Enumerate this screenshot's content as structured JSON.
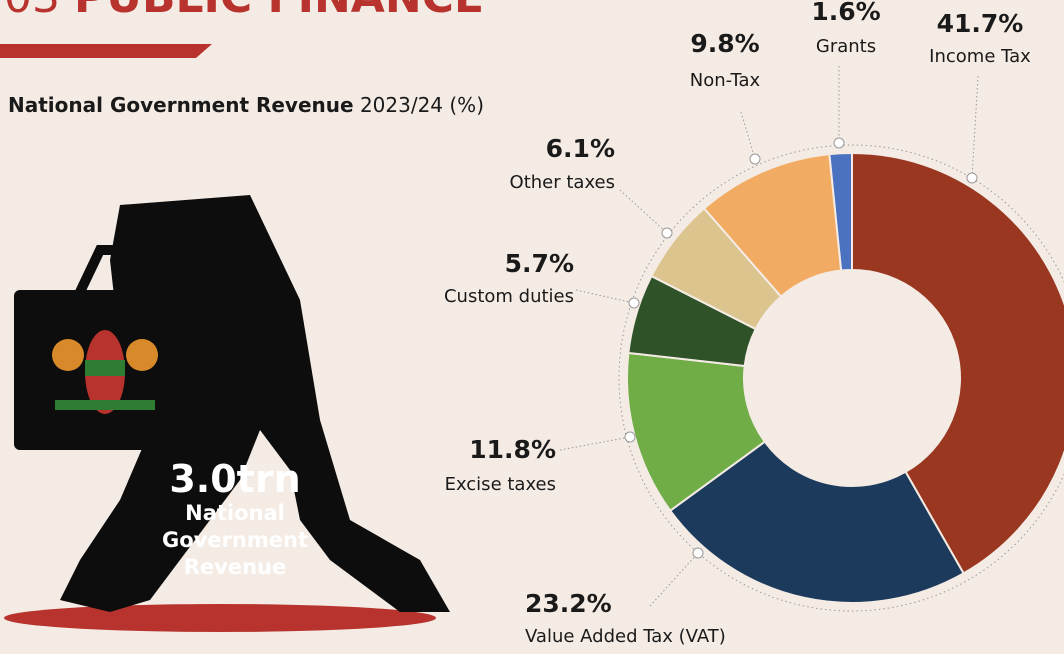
{
  "section": {
    "number": "03",
    "title": "PUBLIC FINANCE"
  },
  "chart_data": {
    "type": "donut",
    "title": "National Government Revenue",
    "subtitle": "2023/24 (%)",
    "categories": [
      "Income Tax",
      "Value Added Tax (VAT)",
      "Excise taxes",
      "Custom duties",
      "Other  taxes",
      "Non-Tax",
      "Grants"
    ],
    "values": [
      41.7,
      23.2,
      11.8,
      5.7,
      6.1,
      9.8,
      1.6
    ],
    "value_labels": [
      "41.7%",
      "23.2%",
      "11.8%",
      "5.7%",
      "6.1%",
      "9.8%",
      "1.6%"
    ],
    "colors": [
      "#993720",
      "#1b3a5c",
      "#70ad47",
      "#2f5228",
      "#dcc48f",
      "#f2ab62",
      "#4a72c0"
    ],
    "annotation": {
      "value": "3.0trn",
      "text": "National Government Revenue"
    }
  }
}
